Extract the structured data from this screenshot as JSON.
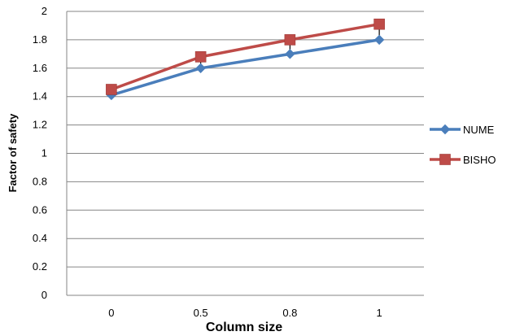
{
  "chart_data": {
    "type": "line",
    "categories": [
      "0",
      "0.5",
      "0.8",
      "1"
    ],
    "series": [
      {
        "name": "NUME",
        "values": [
          1.41,
          1.6,
          1.7,
          1.8
        ],
        "color": "#4a7ebb",
        "marker": "diamond"
      },
      {
        "name": "BISHO",
        "values": [
          1.45,
          1.68,
          1.8,
          1.91
        ],
        "color": "#be4b48",
        "marker": "square"
      }
    ],
    "error_bar_lengths": [
      0.03,
      0.06,
      0.08,
      0.09
    ],
    "yticks": [
      "0",
      "0.2",
      "0.4",
      "0.6",
      "0.8",
      "1",
      "1.2",
      "1.4",
      "1.6",
      "1.8",
      "2"
    ],
    "xlabel": "Column size",
    "ylabel": "Factor of safety",
    "ylim": [
      0,
      2
    ],
    "grid": true,
    "legend_position": "right"
  }
}
